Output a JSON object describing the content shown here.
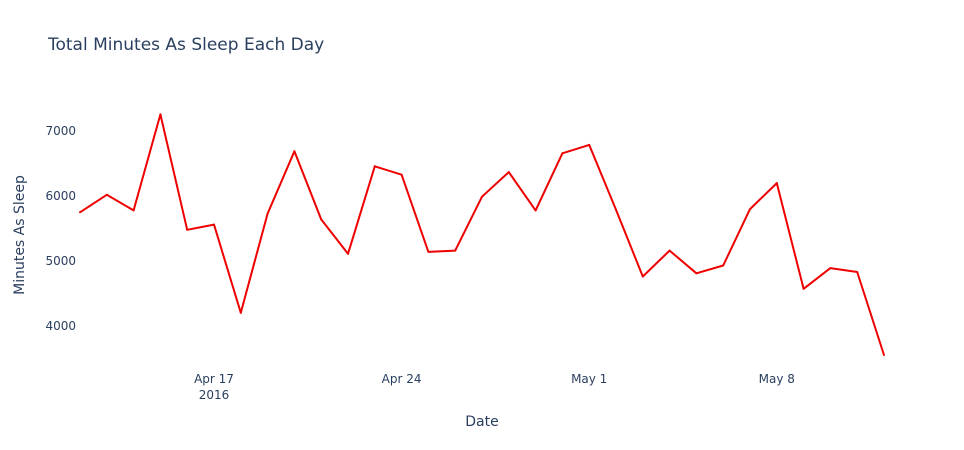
{
  "chart_data": {
    "type": "line",
    "title": "Total Minutes As Sleep Each Day",
    "xlabel": "Date",
    "ylabel": "Minutes As Sleep",
    "x": [
      "2016-04-12",
      "2016-04-13",
      "2016-04-14",
      "2016-04-15",
      "2016-04-16",
      "2016-04-17",
      "2016-04-18",
      "2016-04-19",
      "2016-04-20",
      "2016-04-21",
      "2016-04-22",
      "2016-04-23",
      "2016-04-24",
      "2016-04-25",
      "2016-04-26",
      "2016-04-27",
      "2016-04-28",
      "2016-04-29",
      "2016-04-30",
      "2016-05-01",
      "2016-05-02",
      "2016-05-03",
      "2016-05-04",
      "2016-05-05",
      "2016-05-06",
      "2016-05-07",
      "2016-05-08",
      "2016-05-09",
      "2016-05-10",
      "2016-05-11",
      "2016-05-12"
    ],
    "series": [
      {
        "values": [
          5750,
          6020,
          5780,
          7260,
          5480,
          5560,
          4200,
          5730,
          6690,
          5640,
          5110,
          6460,
          6330,
          5140,
          5160,
          5990,
          6370,
          5780,
          6660,
          6790,
          5790,
          4760,
          5160,
          4810,
          4930,
          5800,
          6200,
          4570,
          4890,
          4830,
          3550
        ]
      }
    ],
    "x_ticks": [
      {
        "date": "2016-04-17",
        "label": "Apr 17",
        "sublabel": "2016"
      },
      {
        "date": "2016-04-24",
        "label": "Apr 24",
        "sublabel": ""
      },
      {
        "date": "2016-05-01",
        "label": "May 1",
        "sublabel": ""
      },
      {
        "date": "2016-05-08",
        "label": "May 8",
        "sublabel": ""
      }
    ],
    "y_ticks": [
      4000,
      5000,
      6000,
      7000
    ],
    "xlim": [
      "2016-04-12",
      "2016-05-12"
    ],
    "ylim": [
      3550,
      7790
    ],
    "grid": false,
    "line_color": "#ee0000"
  }
}
